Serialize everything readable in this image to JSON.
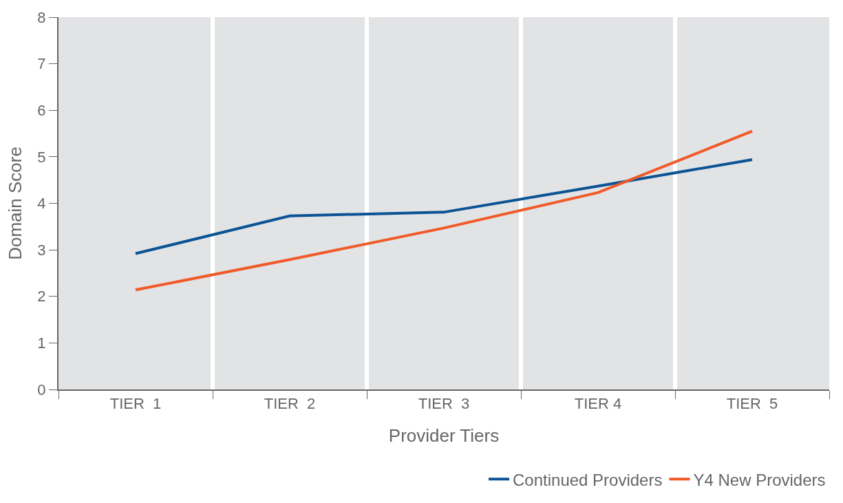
{
  "chart_data": {
    "type": "line",
    "xlabel": "Provider Tiers",
    "ylabel": "Domain Score",
    "categories": [
      "TIER  1",
      "TIER  2",
      "TIER  3",
      "TIER 4",
      "TIER  5"
    ],
    "series": [
      {
        "name": "Continued Providers",
        "color": "#0b5394",
        "values": [
          2.92,
          3.73,
          3.81,
          4.37,
          4.94
        ]
      },
      {
        "name": "Y4 New Providers",
        "color": "#f05a28",
        "values": [
          2.14,
          2.79,
          3.47,
          4.23,
          5.55
        ]
      }
    ],
    "ylim": [
      0,
      8
    ],
    "yticks": [
      0,
      1,
      2,
      3,
      4,
      5,
      6,
      7,
      8
    ],
    "grid": "x",
    "legend": "bottom right",
    "marker": "none",
    "line_style": "solid"
  }
}
